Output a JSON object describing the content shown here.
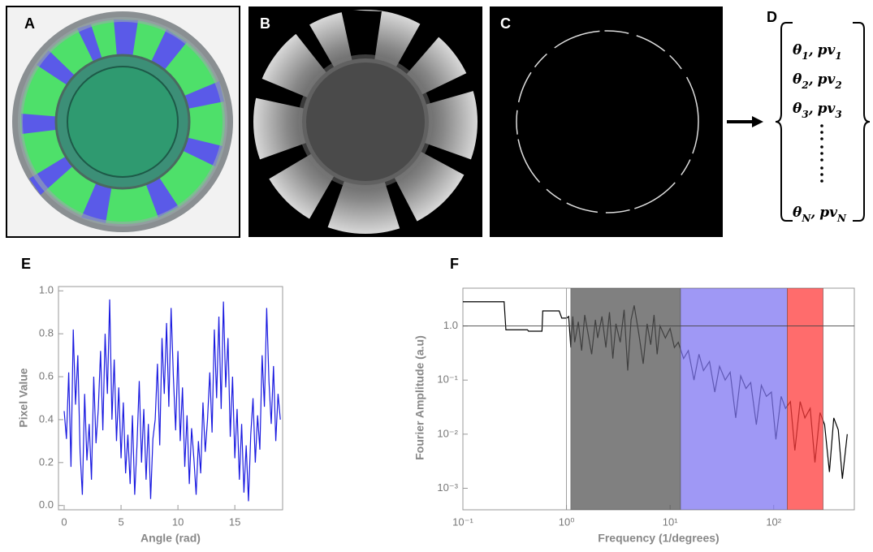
{
  "panels": {
    "a": "A",
    "b": "B",
    "c": "C",
    "d": "D",
    "e": "E",
    "f": "F"
  },
  "vector": [
    [
      "θ",
      "1",
      ",",
      "pv",
      "1"
    ],
    [
      "θ",
      "2",
      ",",
      "pv",
      "2"
    ],
    [
      "θ",
      "3",
      ",",
      "pv",
      "3"
    ],
    [
      "θ",
      "N",
      ",",
      "pv",
      "N"
    ]
  ],
  "chart_data": [
    {
      "type": "line",
      "x_label": "Angle (rad)",
      "y_label": "Pixel Value",
      "x": [
        0,
        0.2,
        0.4,
        0.6,
        0.8,
        1,
        1.2,
        1.4,
        1.6,
        1.8,
        2,
        2.2,
        2.4,
        2.6,
        2.8,
        3,
        3.2,
        3.4,
        3.6,
        3.8,
        4,
        4.2,
        4.4,
        4.6,
        4.8,
        5,
        5.2,
        5.4,
        5.6,
        5.8,
        6,
        6.2,
        6.4,
        6.6,
        6.8,
        7,
        7.2,
        7.4,
        7.6,
        7.8,
        8,
        8.2,
        8.4,
        8.6,
        8.8,
        9,
        9.2,
        9.4,
        9.6,
        9.8,
        10,
        10.2,
        10.4,
        10.6,
        10.8,
        11,
        11.2,
        11.4,
        11.6,
        11.8,
        12,
        12.2,
        12.4,
        12.6,
        12.8,
        13,
        13.2,
        13.4,
        13.6,
        13.8,
        14,
        14.2,
        14.4,
        14.6,
        14.8,
        15,
        15.2,
        15.4,
        15.6,
        15.8,
        16,
        16.2,
        16.4,
        16.6,
        16.8,
        17,
        17.2,
        17.4,
        17.6,
        17.8,
        18,
        18.2,
        18.4,
        18.6,
        18.8,
        19
      ],
      "series": [
        {
          "color": "#1a1ae0",
          "values": [
            0.44,
            0.31,
            0.62,
            0.18,
            0.82,
            0.47,
            0.7,
            0.25,
            0.05,
            0.52,
            0.21,
            0.38,
            0.12,
            0.6,
            0.29,
            0.45,
            0.72,
            0.35,
            0.8,
            0.52,
            0.96,
            0.4,
            0.68,
            0.3,
            0.55,
            0.22,
            0.48,
            0.15,
            0.33,
            0.1,
            0.42,
            0.05,
            0.28,
            0.58,
            0.2,
            0.45,
            0.12,
            0.38,
            0.03,
            0.31,
            0.4,
            0.66,
            0.28,
            0.78,
            0.52,
            0.85,
            0.46,
            0.92,
            0.6,
            0.35,
            0.72,
            0.3,
            0.55,
            0.18,
            0.42,
            0.1,
            0.36,
            0.22,
            0.05,
            0.3,
            0.15,
            0.48,
            0.25,
            0.4,
            0.62,
            0.34,
            0.82,
            0.5,
            0.88,
            0.45,
            0.95,
            0.55,
            0.78,
            0.32,
            0.6,
            0.22,
            0.45,
            0.12,
            0.38,
            0.06,
            0.28,
            0.02,
            0.33,
            0.5,
            0.2,
            0.42,
            0.26,
            0.7,
            0.46,
            0.92,
            0.58,
            0.38,
            0.65,
            0.3,
            0.52,
            0.4
          ]
        }
      ],
      "xlim": [
        -0.5,
        19.2
      ],
      "ylim": [
        -0.02,
        1.02
      ],
      "xticks": [
        0,
        5,
        10,
        15
      ],
      "yticks": [
        {
          "value": 0,
          "label": "0.0"
        },
        0.2,
        0.4,
        0.6,
        0.8,
        {
          "value": 1,
          "label": "1.0"
        }
      ]
    },
    {
      "type": "line",
      "x_label": "Frequency (1/degrees)",
      "y_label": "Fourier Amplitude (a.u)",
      "log_x": true,
      "log_y": true,
      "x": [
        0.1,
        0.25,
        0.26,
        0.42,
        0.43,
        0.58,
        0.59,
        0.85,
        0.9,
        1.0,
        1.05,
        1.1,
        1.15,
        1.2,
        1.3,
        1.4,
        1.5,
        1.6,
        1.75,
        1.9,
        2.0,
        2.2,
        2.4,
        2.6,
        2.8,
        3.0,
        3.3,
        3.6,
        3.9,
        4.2,
        4.5,
        5.0,
        5.5,
        6.0,
        6.5,
        7.0,
        7.5,
        8.0,
        9.0,
        10.0,
        11,
        12,
        13.5,
        15,
        17,
        19,
        21,
        24,
        27,
        30,
        34,
        38,
        43,
        48,
        54,
        60,
        68,
        76,
        85,
        95,
        105,
        118,
        130,
        145,
        160,
        180,
        200,
        225,
        250,
        280,
        310,
        345,
        380,
        420,
        460,
        513
      ],
      "series": [
        {
          "color": "#000000",
          "values": [
            2.8,
            2.8,
            0.85,
            0.85,
            0.8,
            0.8,
            1.9,
            1.9,
            1.4,
            1.4,
            1.5,
            0.4,
            1.5,
            0.5,
            1.2,
            0.35,
            1.6,
            0.8,
            0.3,
            1.3,
            0.6,
            1.5,
            0.4,
            1.8,
            0.25,
            1.1,
            0.5,
            2.0,
            0.15,
            1.3,
            2.4,
            0.7,
            0.2,
            1.1,
            0.45,
            1.6,
            0.3,
            1.0,
            0.6,
            0.9,
            0.4,
            0.5,
            0.25,
            0.35,
            0.1,
            0.3,
            0.15,
            0.22,
            0.06,
            0.18,
            0.1,
            0.14,
            0.02,
            0.12,
            0.07,
            0.09,
            0.015,
            0.08,
            0.05,
            0.06,
            0.008,
            0.05,
            0.03,
            0.04,
            0.005,
            0.04,
            0.02,
            0.03,
            0.003,
            0.025,
            0.015,
            0.002,
            0.02,
            0.012,
            0.0015,
            0.01
          ]
        }
      ],
      "regions": [
        {
          "from": 1.1,
          "to": 12.6,
          "color": "#555555"
        },
        {
          "from": 12.6,
          "to": 135,
          "color": "#7f76f2"
        },
        {
          "from": 135,
          "to": 300,
          "color": "#ff3b3b"
        }
      ],
      "hline": 1,
      "vline": 1,
      "xlim": [
        0.1,
        600
      ],
      "ylim": [
        0.0004,
        5
      ],
      "xticks": [
        {
          "value": 0.1,
          "label": "10⁻¹"
        },
        {
          "value": 1,
          "label": "10⁰"
        },
        {
          "value": 10,
          "label": "10¹"
        },
        {
          "value": 100,
          "label": "10²"
        }
      ],
      "yticks": [
        {
          "value": 0.001,
          "label": "10⁻³"
        },
        {
          "value": 0.01,
          "label": "10⁻²"
        },
        {
          "value": 0.1,
          "label": "10⁻¹"
        },
        {
          "value": 1,
          "label": "1.0"
        }
      ]
    }
  ]
}
